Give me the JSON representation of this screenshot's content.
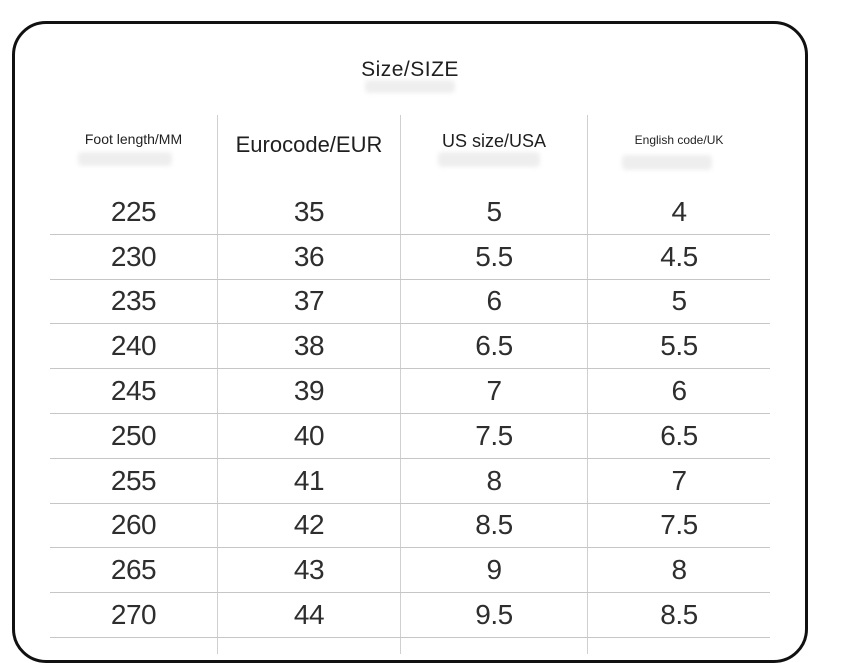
{
  "title": "Size/SIZE",
  "table": {
    "columns": [
      {
        "label": "Foot length/MM"
      },
      {
        "label": "Eurocode/EUR"
      },
      {
        "label": "US size/USA"
      },
      {
        "label": "English code/UK"
      }
    ],
    "rows": [
      [
        "225",
        "35",
        "5",
        "4"
      ],
      [
        "230",
        "36",
        "5.5",
        "4.5"
      ],
      [
        "235",
        "37",
        "6",
        "5"
      ],
      [
        "240",
        "38",
        "6.5",
        "5.5"
      ],
      [
        "245",
        "39",
        "7",
        "6"
      ],
      [
        "250",
        "40",
        "7.5",
        "6.5"
      ],
      [
        "255",
        "41",
        "8",
        "7"
      ],
      [
        "260",
        "42",
        "8.5",
        "7.5"
      ],
      [
        "265",
        "43",
        "9",
        "8"
      ],
      [
        "270",
        "44",
        "9.5",
        "8.5"
      ]
    ]
  },
  "chart_data": {
    "type": "table",
    "title": "Size/SIZE",
    "columns": [
      "Foot length/MM",
      "Eurocode/EUR",
      "US size/USA",
      "English code/UK"
    ],
    "rows": [
      [
        225,
        35,
        5,
        4
      ],
      [
        230,
        36,
        5.5,
        4.5
      ],
      [
        235,
        37,
        6,
        5
      ],
      [
        240,
        38,
        6.5,
        5.5
      ],
      [
        245,
        39,
        7,
        6
      ],
      [
        250,
        40,
        7.5,
        6.5
      ],
      [
        255,
        41,
        8,
        7
      ],
      [
        260,
        42,
        8.5,
        7.5
      ],
      [
        265,
        43,
        9,
        8
      ],
      [
        270,
        44,
        9.5,
        8.5
      ]
    ],
    "layout": {
      "grid": "horizontal row separators and vertical column separators, light gray",
      "frame": "rounded rectangle black border"
    }
  },
  "colors": {
    "border": "#111111",
    "row_line": "#c6c6c6",
    "column_line": "#d0d0d0",
    "text": "#2e2e2e",
    "heading_text": "#1f1f1f",
    "background": "#ffffff"
  }
}
